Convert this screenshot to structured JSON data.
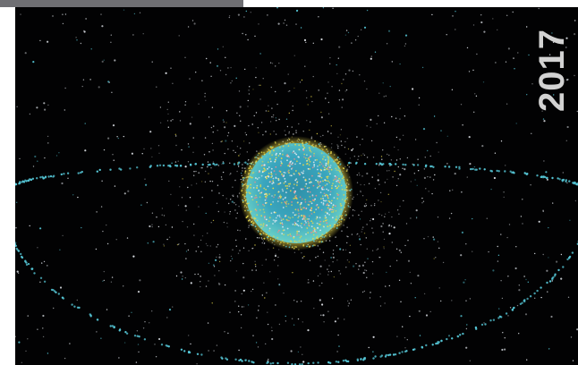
{
  "image": {
    "year_label": "2017",
    "colors": {
      "space": "#020203",
      "debris_white": "#e8ecf2",
      "debris_cyan": "#56c8d8",
      "debris_yellow": "#e8d84a",
      "earth_core": "#3a9fb8",
      "year_text": "#d2d2d2",
      "top_strip": "#6f6f73"
    }
  }
}
